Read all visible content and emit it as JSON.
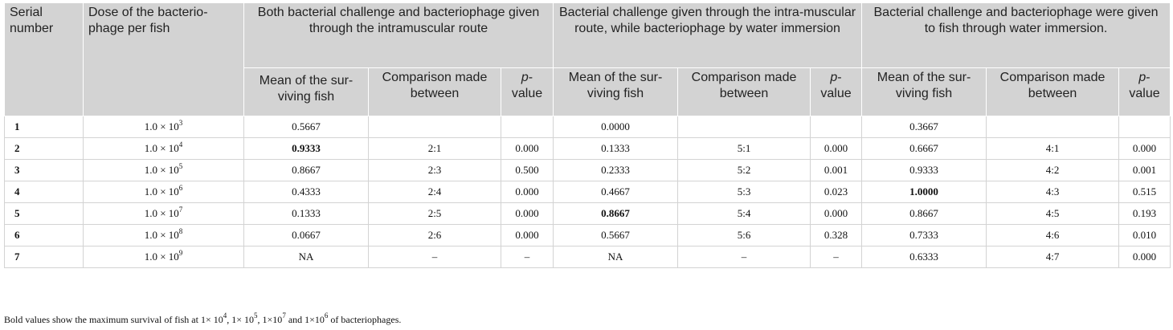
{
  "headers": {
    "serial": "Serial number",
    "dose": "Dose of the bacterio-phage per fish",
    "group1": "Both bacterial challenge and bacteriophage given through the intramuscular route",
    "group2": "Bacterial challenge given through the intra-muscular route, while bacteriophage by water immersion",
    "group3": "Bacterial challenge and bacteriophage were given to fish through water immersion.",
    "mean": "Mean of the sur-viving fish",
    "comparison": "Comparison made between",
    "p_italic": "p",
    "p_rest": "-value"
  },
  "rows": [
    {
      "serial": "1",
      "dose_base": "1.0 × 10",
      "dose_exp": "3",
      "g1_mean": "0.5667",
      "g1_cmp": "",
      "g1_p": "",
      "g2_mean": "0.0000",
      "g2_cmp": "",
      "g2_p": "",
      "g3_mean": "0.3667",
      "g3_cmp": "",
      "g3_p": ""
    },
    {
      "serial": "2",
      "dose_base": "1.0 × 10",
      "dose_exp": "4",
      "g1_mean": "0.9333",
      "g1_cmp": "2:1",
      "g1_p": "0.000",
      "g2_mean": "0.1333",
      "g2_cmp": "5:1",
      "g2_p": "0.000",
      "g3_mean": "0.6667",
      "g3_cmp": "4:1",
      "g3_p": "0.000"
    },
    {
      "serial": "3",
      "dose_base": "1.0 × 10",
      "dose_exp": "5",
      "g1_mean": "0.8667",
      "g1_cmp": "2:3",
      "g1_p": "0.500",
      "g2_mean": "0.2333",
      "g2_cmp": "5:2",
      "g2_p": "0.001",
      "g3_mean": "0.9333",
      "g3_cmp": "4:2",
      "g3_p": "0.001"
    },
    {
      "serial": "4",
      "dose_base": "1.0 × 10",
      "dose_exp": "6",
      "g1_mean": "0.4333",
      "g1_cmp": "2:4",
      "g1_p": "0.000",
      "g2_mean": "0.4667",
      "g2_cmp": "5:3",
      "g2_p": "0.023",
      "g3_mean": "1.0000",
      "g3_cmp": "4:3",
      "g3_p": "0.515"
    },
    {
      "serial": "5",
      "dose_base": "1.0 × 10",
      "dose_exp": "7",
      "g1_mean": "0.1333",
      "g1_cmp": "2:5",
      "g1_p": "0.000",
      "g2_mean": "0.8667",
      "g2_cmp": "5:4",
      "g2_p": "0.000",
      "g3_mean": "0.8667",
      "g3_cmp": "4:5",
      "g3_p": "0.193"
    },
    {
      "serial": "6",
      "dose_base": "1.0 × 10",
      "dose_exp": "8",
      "g1_mean": "0.0667",
      "g1_cmp": "2:6",
      "g1_p": "0.000",
      "g2_mean": "0.5667",
      "g2_cmp": "5:6",
      "g2_p": "0.328",
      "g3_mean": "0.7333",
      "g3_cmp": "4:6",
      "g3_p": "0.010"
    },
    {
      "serial": "7",
      "dose_base": "1.0 × 10",
      "dose_exp": "9",
      "g1_mean": "NA",
      "g1_cmp": "–",
      "g1_p": "–",
      "g2_mean": "NA",
      "g2_cmp": "–",
      "g2_p": "–",
      "g3_mean": "0.6333",
      "g3_cmp": "4:7",
      "g3_p": "0.000"
    }
  ],
  "footnote": {
    "t1": "Bold values show the maximum survival of fish at 1× 10",
    "e1": "4",
    "t2": ", 1× 10",
    "e2": "5",
    "t3": ", 1×10",
    "e3": "7",
    "t4": " and 1×10",
    "e4": "6",
    "t5": " of bacteriophages."
  }
}
